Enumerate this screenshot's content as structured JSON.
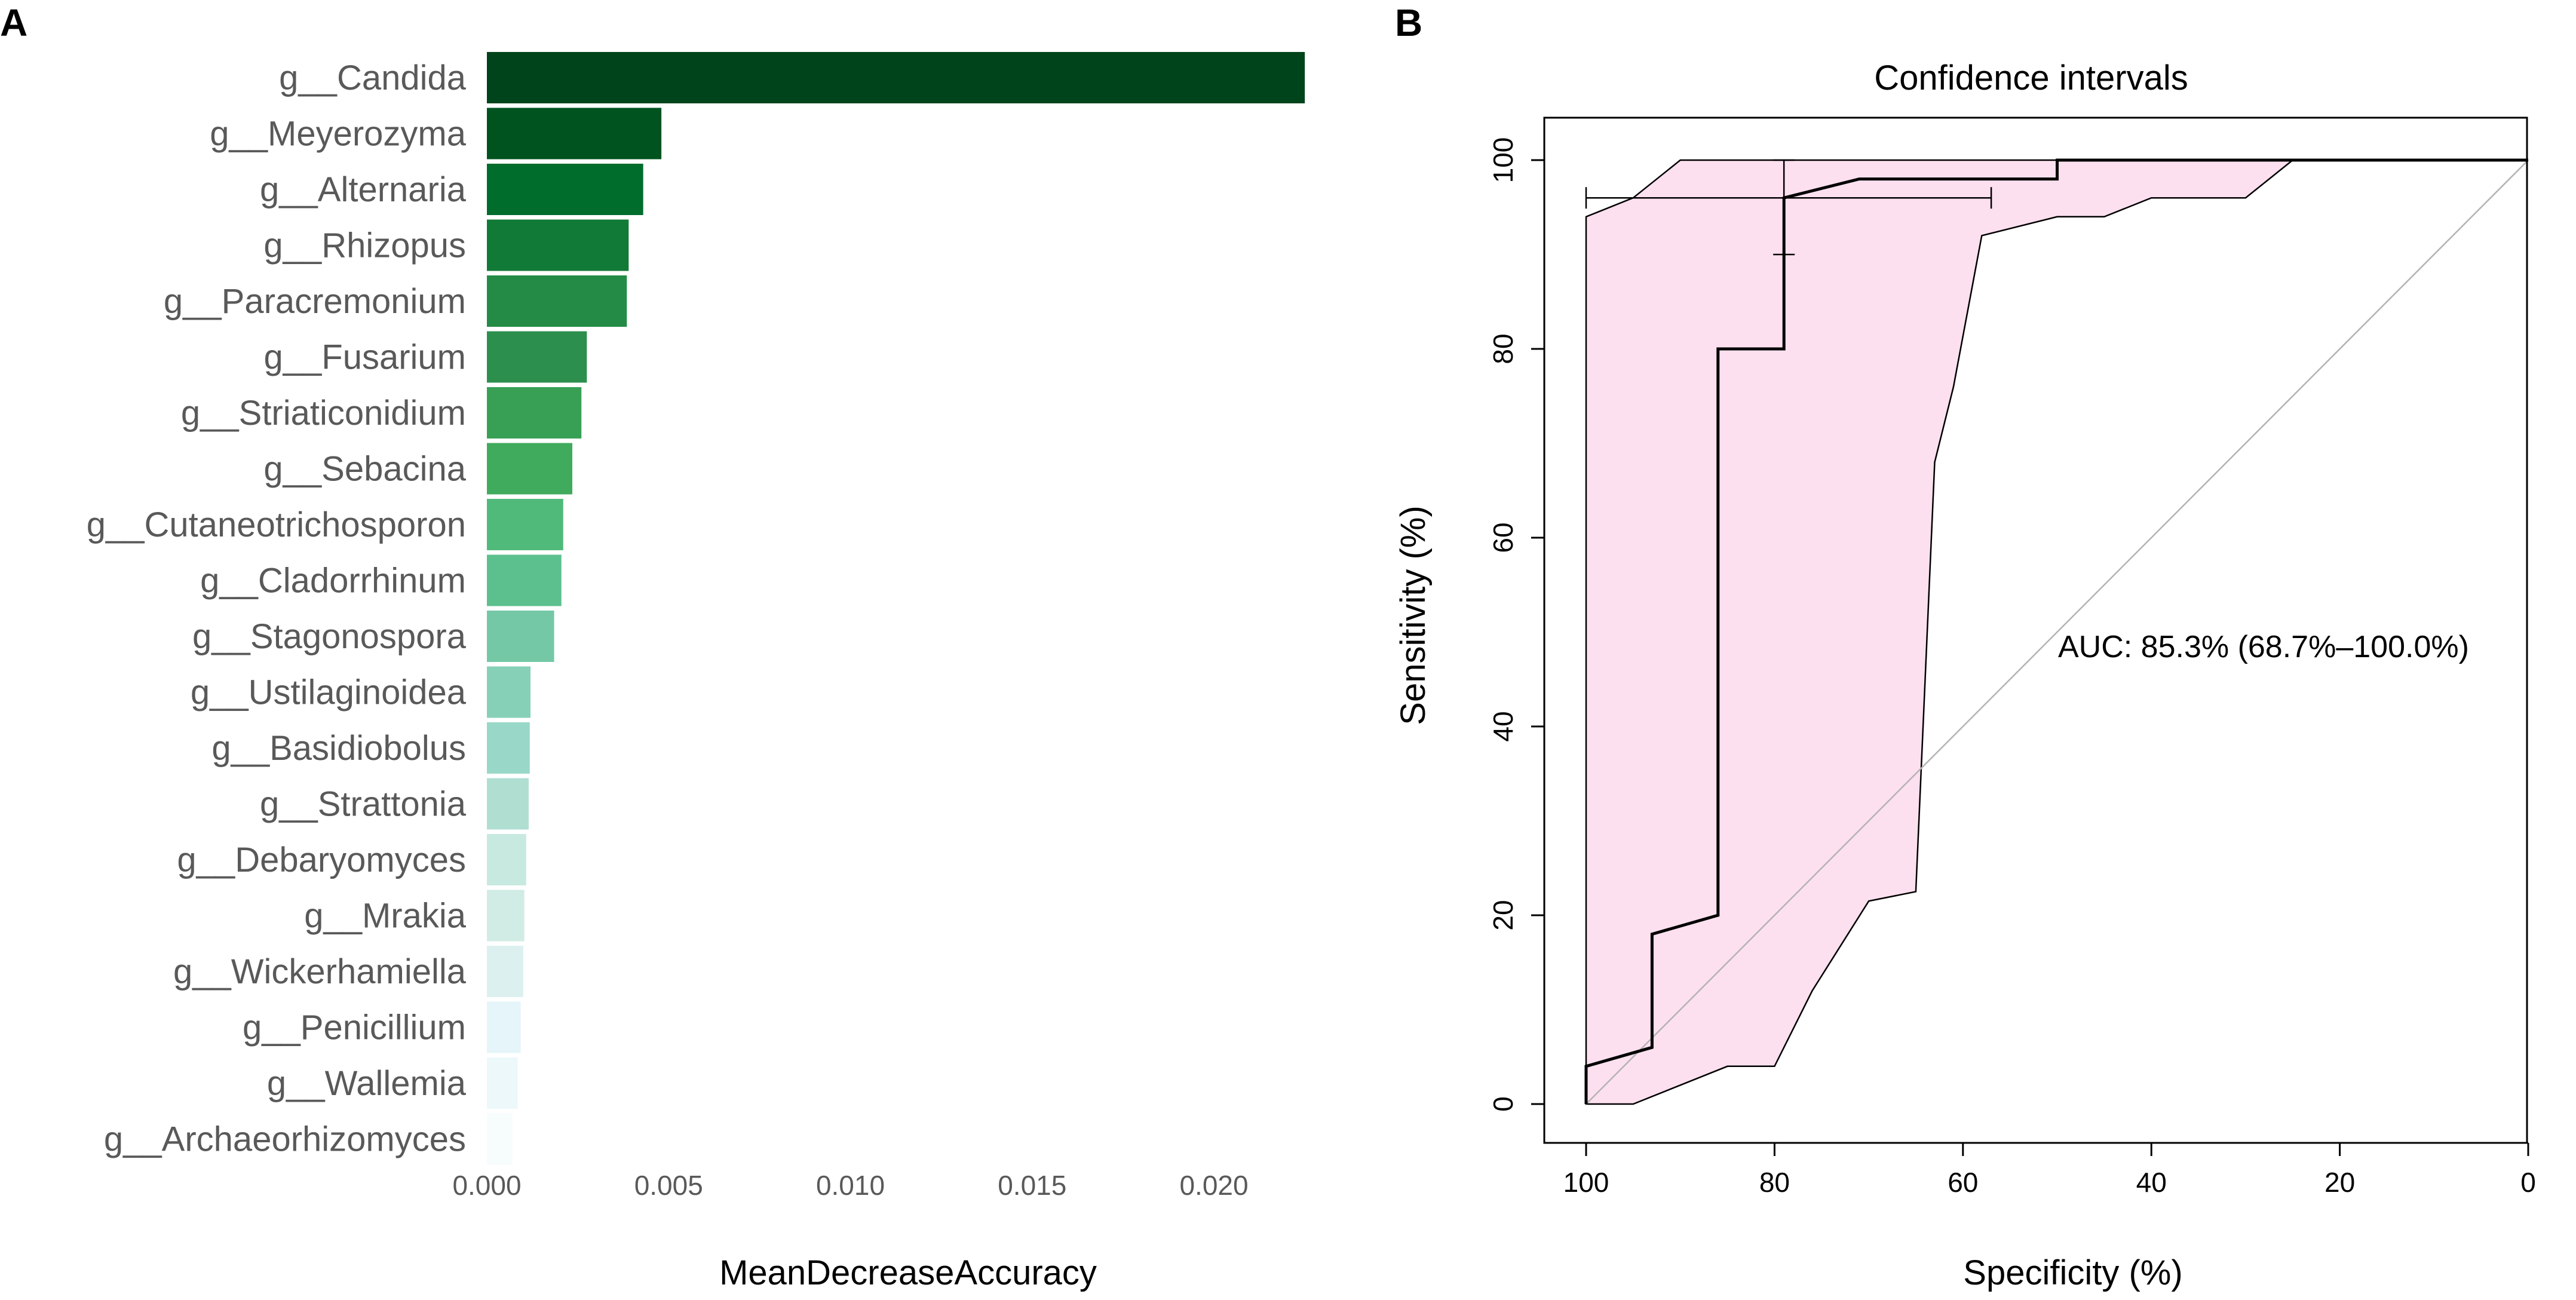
{
  "panels": {
    "a_label": "A",
    "b_label": "B"
  },
  "chart_data": [
    {
      "type": "bar",
      "orientation": "horizontal",
      "panel": "A",
      "title": "",
      "xlabel": "MeanDecreaseAccuracy",
      "ylabel": "",
      "xlim": [
        0,
        0.0235
      ],
      "xticks": [
        0,
        0.005,
        0.01,
        0.015,
        0.02
      ],
      "xtick_labels": [
        "0.000",
        "0.005",
        "0.010",
        "0.015",
        "0.020"
      ],
      "categories": [
        "g__Candida",
        "g__Meyerozyma",
        "g__Alternaria",
        "g__Rhizopus",
        "g__Paracremonium",
        "g__Fusarium",
        "g__Striaticonidium",
        "g__Sebacina",
        "g__Cutaneotrichosporon",
        "g__Cladorrhinum",
        "g__Stagonospora",
        "g__Ustilaginoidea",
        "g__Basidiobolus",
        "g__Strattonia",
        "g__Debaryomyces",
        "g__Mrakia",
        "g__Wickerhamiella",
        "g__Penicillium",
        "g__Wallemia",
        "g__Archaeorhizomyces"
      ],
      "values": [
        0.0225,
        0.0048,
        0.0043,
        0.0039,
        0.00385,
        0.00275,
        0.0026,
        0.00235,
        0.0021,
        0.00205,
        0.00185,
        0.0012,
        0.00118,
        0.00115,
        0.00108,
        0.00103,
        0.001,
        0.00093,
        0.00085,
        0.0007
      ],
      "colors": [
        "#00441b",
        "#00531f",
        "#006d2c",
        "#117a36",
        "#238b45",
        "#2d8f4e",
        "#37a055",
        "#41ab5d",
        "#4fba7a",
        "#5cc08e",
        "#74c8a6",
        "#86d0b8",
        "#99d8c9",
        "#b0dfd2",
        "#c7e9e0",
        "#d0ece4",
        "#dcf0f0",
        "#e5f5f9",
        "#edf8fb",
        "#f7fcfd"
      ]
    },
    {
      "type": "line",
      "panel": "B",
      "title": "Confidence intervals",
      "xlabel": "Specificity (%)",
      "ylabel": "Sensitivity (%)",
      "xlim": [
        100,
        0
      ],
      "ylim": [
        0,
        100
      ],
      "xticks": [
        100,
        80,
        60,
        40,
        20,
        0
      ],
      "yticks": [
        0,
        20,
        40,
        60,
        80,
        100
      ],
      "annotation": "AUC: 85.3% (68.7%–100.0%)",
      "roc": [
        [
          100,
          0
        ],
        [
          100,
          4
        ],
        [
          93,
          6
        ],
        [
          93,
          18
        ],
        [
          86,
          20
        ],
        [
          86,
          80
        ],
        [
          79,
          80
        ],
        [
          79,
          96
        ],
        [
          71,
          98
        ],
        [
          50,
          98
        ],
        [
          50,
          100
        ],
        [
          0,
          100
        ]
      ],
      "ci_band_upper": [
        [
          100,
          94
        ],
        [
          95,
          96
        ],
        [
          90,
          100
        ],
        [
          0,
          100
        ]
      ],
      "ci_band_lower": [
        [
          25,
          100
        ],
        [
          30,
          96
        ],
        [
          40,
          96
        ],
        [
          45,
          94
        ],
        [
          50,
          94
        ],
        [
          58,
          92
        ],
        [
          61,
          76
        ],
        [
          63,
          68
        ],
        [
          65,
          22.5
        ],
        [
          70,
          21.5
        ],
        [
          76,
          12
        ],
        [
          80,
          4
        ],
        [
          85,
          4
        ],
        [
          95,
          0
        ],
        [
          100,
          0
        ]
      ],
      "diagonal": [
        [
          100,
          0
        ],
        [
          0,
          100
        ]
      ],
      "threshold_point": {
        "specificity": 79,
        "sensitivity": 96,
        "spec_ci": [
          57,
          100
        ],
        "sens_ci": [
          90,
          100
        ]
      },
      "band_color": "#fde0ef",
      "line_color": "#000000",
      "diagonal_color": "#b3b3b3"
    }
  ]
}
